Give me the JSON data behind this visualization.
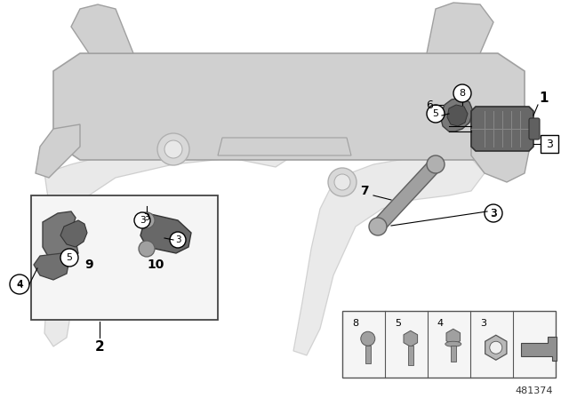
{
  "background_color": "#ffffff",
  "part_number": "481374",
  "figure_width": 6.4,
  "figure_height": 4.48,
  "dpi": 100,
  "subframe_color": "#d0d0d0",
  "subframe_edge": "#a0a0a0",
  "part_dark": "#606060",
  "part_med": "#909090",
  "part_light": "#b8b8b8",
  "label_color": "#000000",
  "circle_bg": "#ffffff",
  "circle_edge": "#000000",
  "inset_bg": "#f5f5f5",
  "inset_edge": "#444444"
}
